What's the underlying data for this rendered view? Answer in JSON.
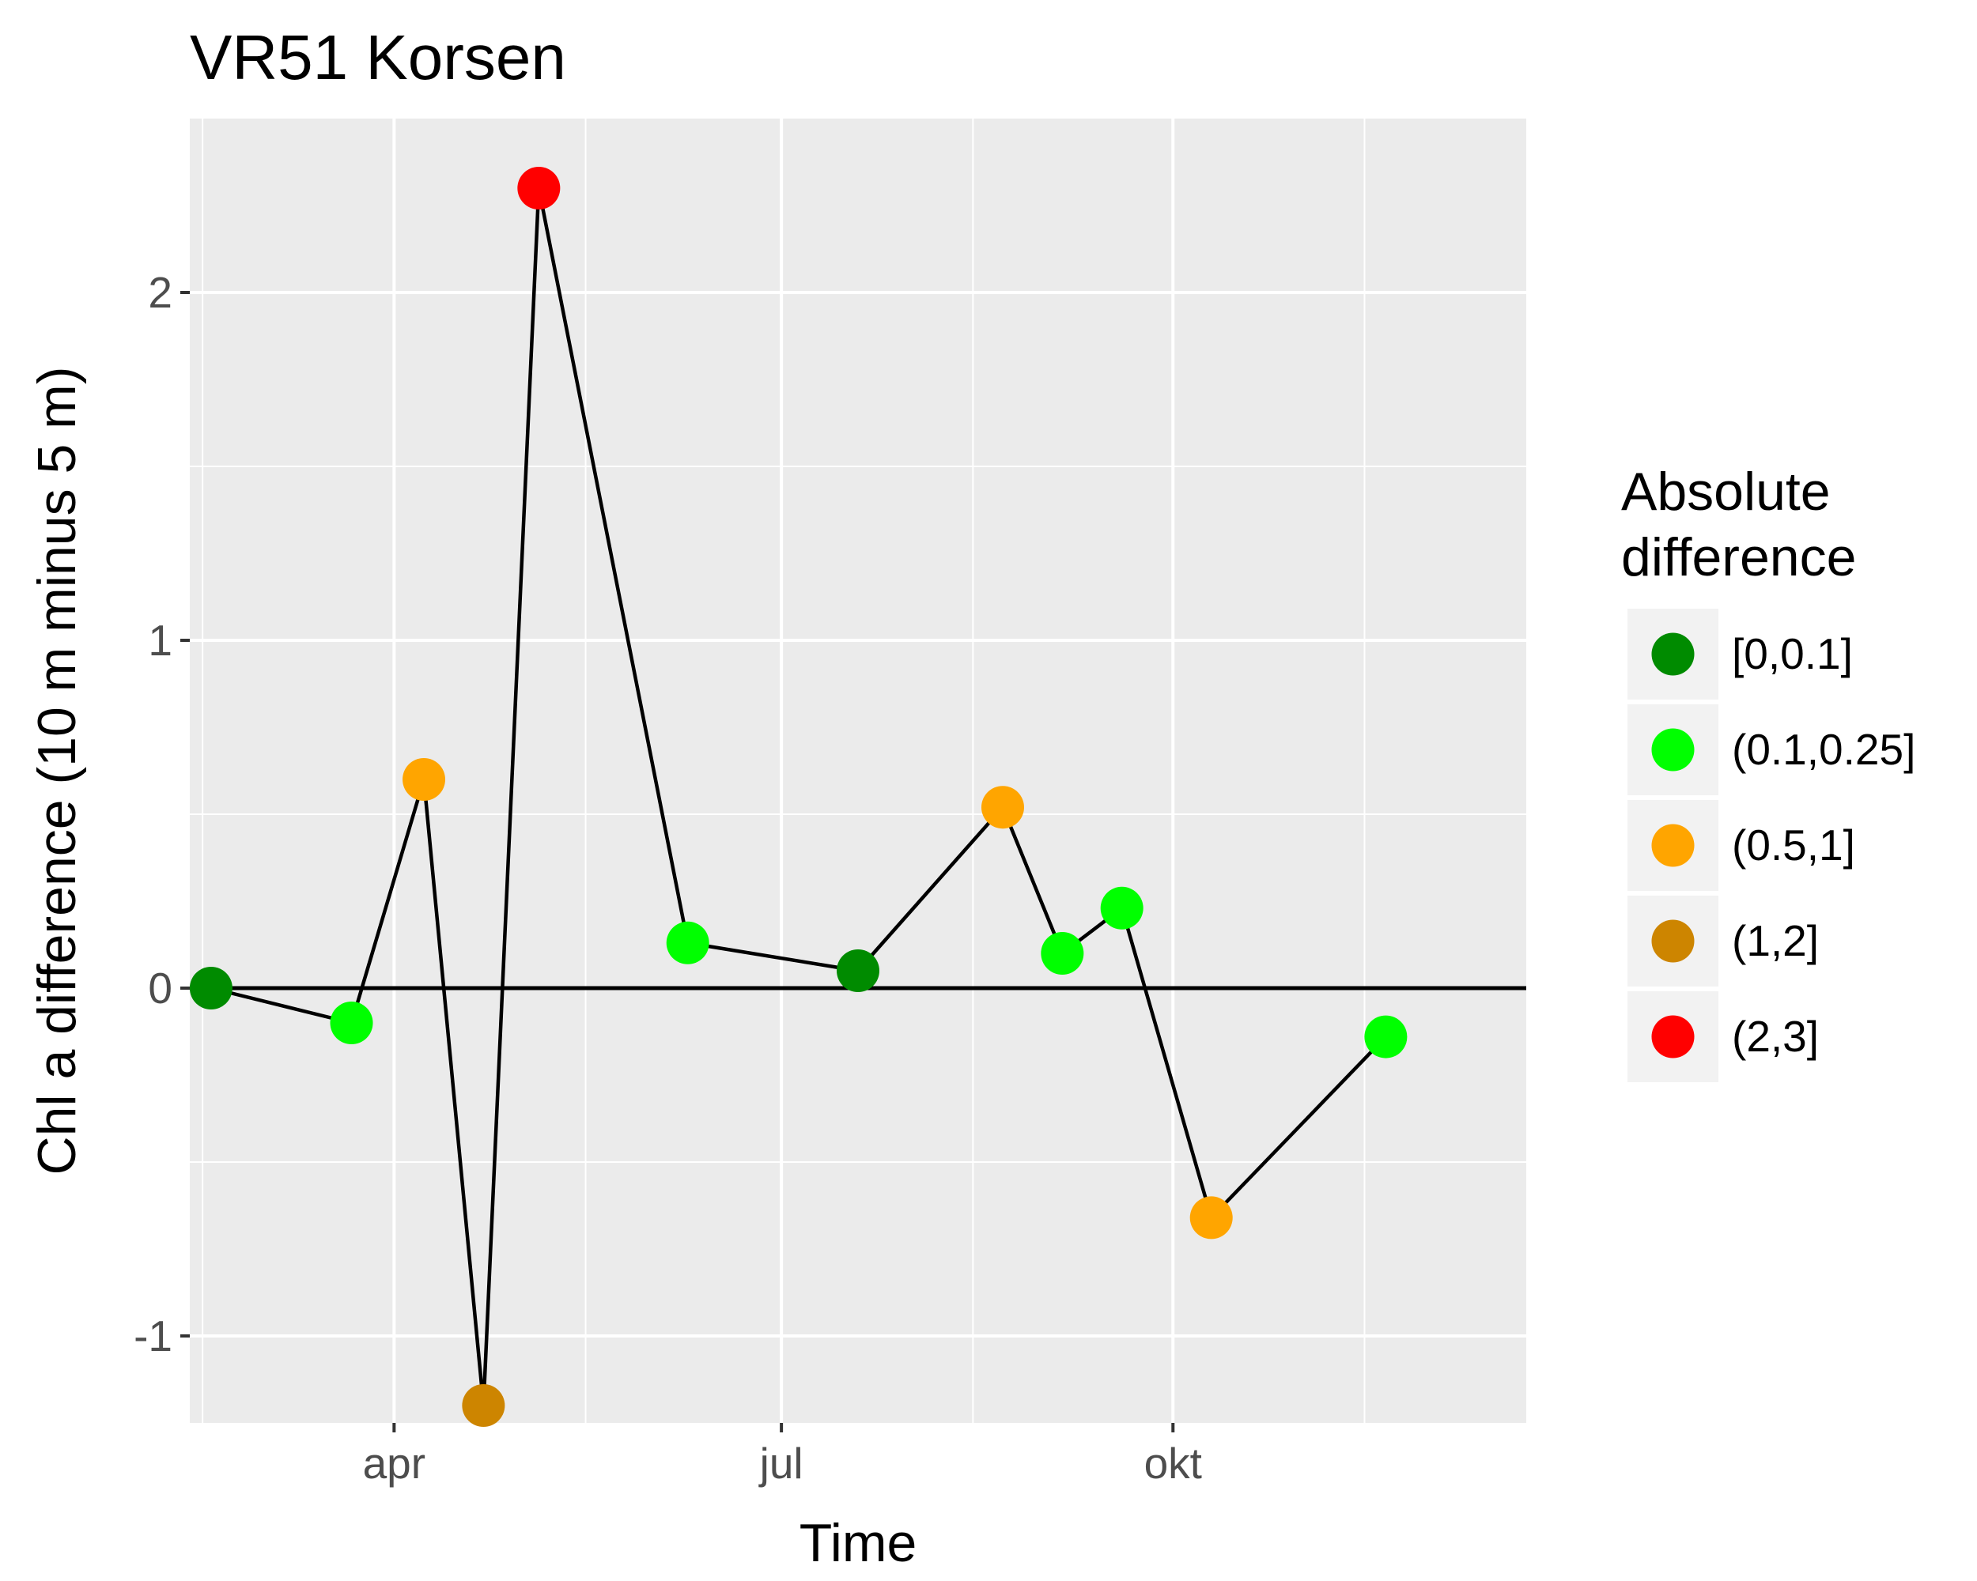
{
  "chart_data": {
    "type": "scatter",
    "title": "VR51 Korsen",
    "xlabel": "Time",
    "ylabel": "Chl a difference (10 m minus 5 m)",
    "xlim": [
      "2014-02-12",
      "2014-12-23"
    ],
    "ylim": [
      -1.25,
      2.5
    ],
    "x_ticks": [
      {
        "label": "apr",
        "date": "2014-04-01"
      },
      {
        "label": "jul",
        "date": "2014-07-01"
      },
      {
        "label": "okt",
        "date": "2014-10-01"
      }
    ],
    "x_minor_breaks": [
      "2014-02-15",
      "2014-05-16",
      "2014-08-15",
      "2014-11-15"
    ],
    "y_ticks": [
      -1,
      0,
      1,
      2
    ],
    "y_minor_breaks": [
      -0.5,
      0.5,
      1.5
    ],
    "grid": true,
    "hline": 0,
    "connect_points": true,
    "legend": {
      "title": [
        "Absolute",
        "difference"
      ],
      "position": "right",
      "categories": [
        {
          "label": "[0,0.1]",
          "color": "#008B00"
        },
        {
          "label": "(0.1,0.25]",
          "color": "#00FF00"
        },
        {
          "label": "(0.5,1]",
          "color": "#FFA500"
        },
        {
          "label": "(1,2]",
          "color": "#CD8500"
        },
        {
          "label": "(2,3]",
          "color": "#FF0000"
        }
      ]
    },
    "points": [
      {
        "date": "2014-02-17",
        "y": 0.0,
        "category": "[0,0.1]"
      },
      {
        "date": "2014-03-22",
        "y": -0.1,
        "category": "(0.1,0.25]"
      },
      {
        "date": "2014-04-08",
        "y": 0.6,
        "category": "(0.5,1]"
      },
      {
        "date": "2014-04-22",
        "y": -1.2,
        "category": "(1,2]"
      },
      {
        "date": "2014-05-05",
        "y": 2.3,
        "category": "(2,3]"
      },
      {
        "date": "2014-06-09",
        "y": 0.13,
        "category": "(0.1,0.25]"
      },
      {
        "date": "2014-07-19",
        "y": 0.05,
        "category": "[0,0.1]"
      },
      {
        "date": "2014-08-22",
        "y": 0.52,
        "category": "(0.5,1]"
      },
      {
        "date": "2014-09-05",
        "y": 0.1,
        "category": "(0.1,0.25]"
      },
      {
        "date": "2014-09-19",
        "y": 0.23,
        "category": "(0.1,0.25]"
      },
      {
        "date": "2014-10-10",
        "y": -0.66,
        "category": "(0.5,1]"
      },
      {
        "date": "2014-11-20",
        "y": -0.14,
        "category": "(0.1,0.25]"
      }
    ]
  }
}
